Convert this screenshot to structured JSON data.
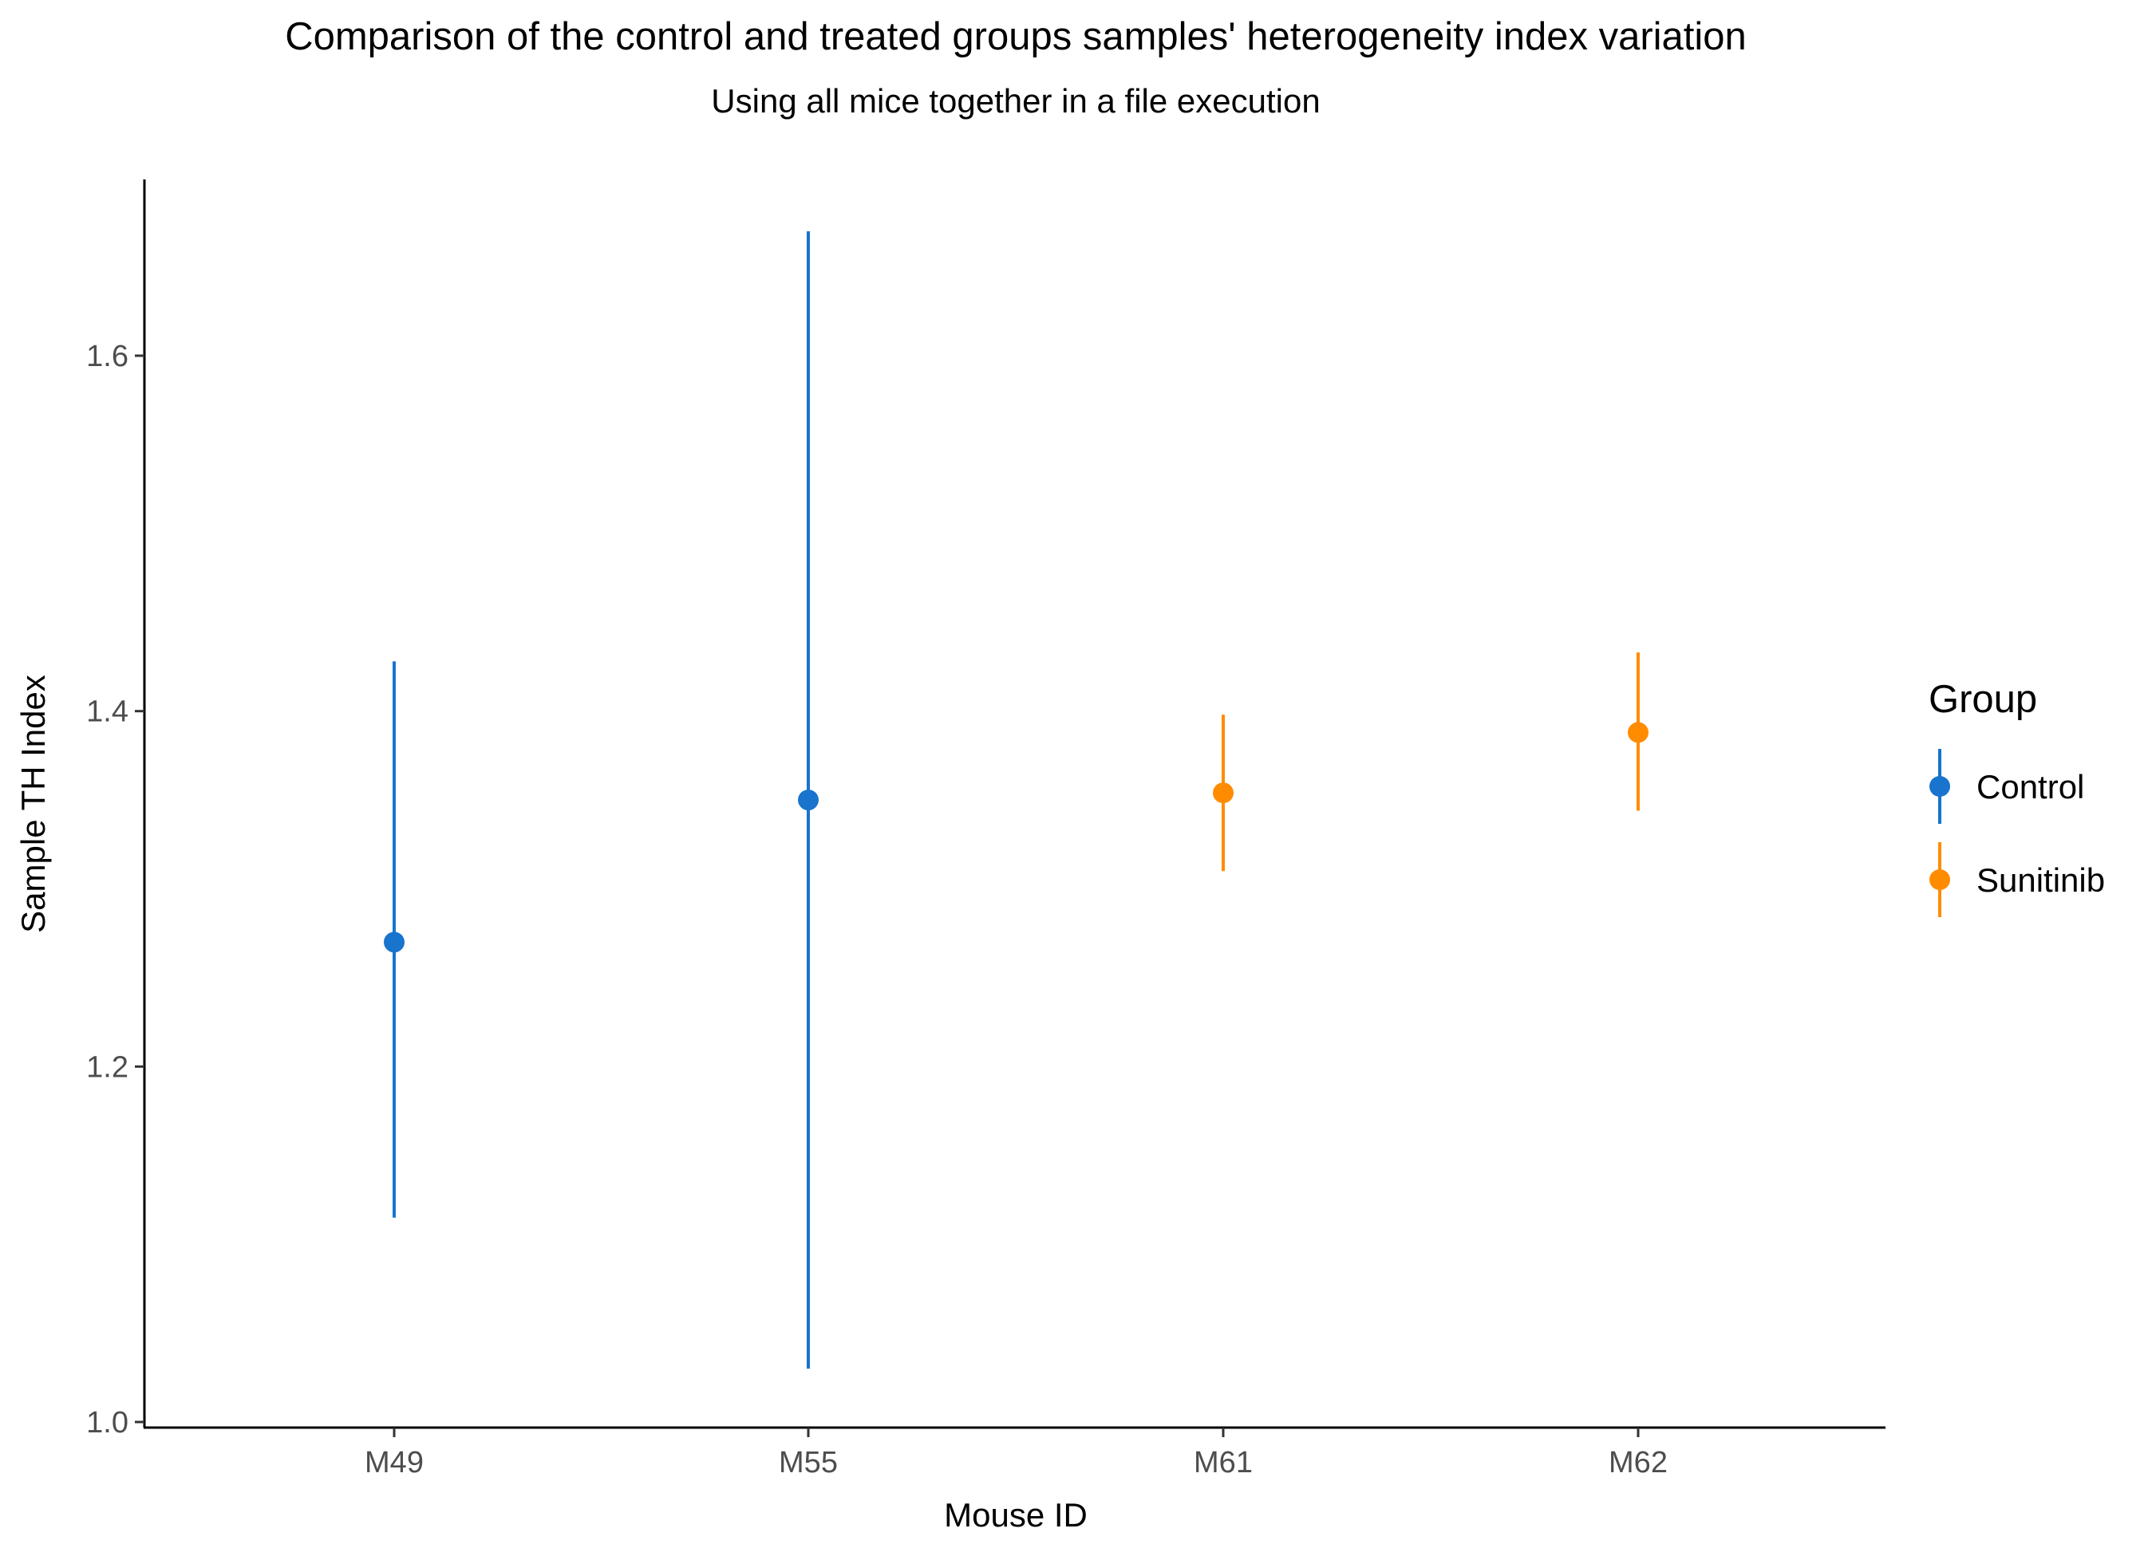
{
  "chart_data": {
    "type": "scatter",
    "subtype": "point-with-error-bars",
    "title": "Comparison of the control and treated groups samples' heterogeneity index variation",
    "subtitle": "Using all mice together in a file execution",
    "xlabel": "Mouse ID",
    "ylabel": "Sample TH Index",
    "categories": [
      "M49",
      "M55",
      "M61",
      "M62"
    ],
    "ylim": [
      0.99,
      1.7
    ],
    "yticks": [
      1.0,
      1.2,
      1.4,
      1.6
    ],
    "ytick_labels": [
      "1.0",
      "1.2",
      "1.4",
      "1.6"
    ],
    "grid": false,
    "legend": {
      "title": "Group",
      "position": "right",
      "entries": [
        {
          "name": "Control",
          "color": "#1874CD"
        },
        {
          "name": "Sunitinib",
          "color": "#FF8C00"
        }
      ]
    },
    "points": [
      {
        "x": "M49",
        "group": "Control",
        "y": 1.27,
        "ymin": 1.115,
        "ymax": 1.428
      },
      {
        "x": "M55",
        "group": "Control",
        "y": 1.35,
        "ymin": 1.03,
        "ymax": 1.67
      },
      {
        "x": "M61",
        "group": "Sunitinib",
        "y": 1.354,
        "ymin": 1.31,
        "ymax": 1.398
      },
      {
        "x": "M62",
        "group": "Sunitinib",
        "y": 1.388,
        "ymin": 1.344,
        "ymax": 1.433
      }
    ]
  }
}
